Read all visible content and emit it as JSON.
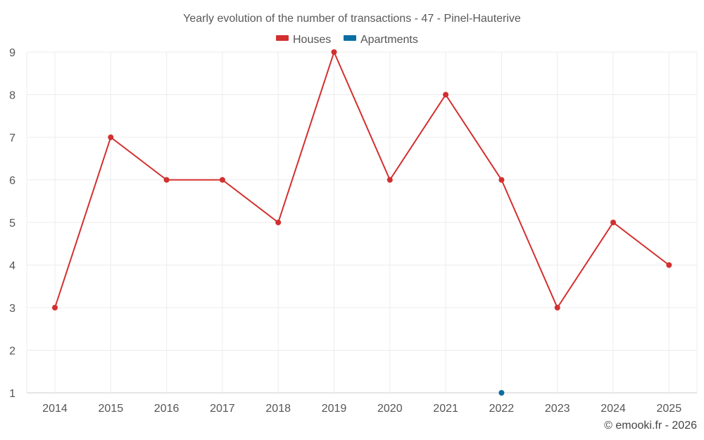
{
  "chart_data": {
    "type": "line",
    "title": "Yearly evolution of the number of transactions - 47 - Pinel-Hauterive",
    "categories": [
      "2014",
      "2015",
      "2016",
      "2017",
      "2018",
      "2019",
      "2020",
      "2021",
      "2022",
      "2023",
      "2024",
      "2025"
    ],
    "series": [
      {
        "name": "Houses",
        "color": "#d32f2f",
        "values": [
          3,
          7,
          6,
          6,
          5,
          9,
          6,
          8,
          6,
          3,
          5,
          4
        ]
      },
      {
        "name": "Apartments",
        "color": "#0b6ea3",
        "values": [
          null,
          null,
          null,
          null,
          null,
          null,
          null,
          null,
          1,
          null,
          null,
          null
        ]
      }
    ],
    "ylim": [
      1,
      9
    ],
    "yticks": [
      "1",
      "2",
      "3",
      "4",
      "5",
      "6",
      "7",
      "8",
      "9"
    ],
    "xlabel": "",
    "ylabel": "",
    "grid": true,
    "legend_position": "top-center"
  },
  "credit": "© emooki.fr - 2026"
}
